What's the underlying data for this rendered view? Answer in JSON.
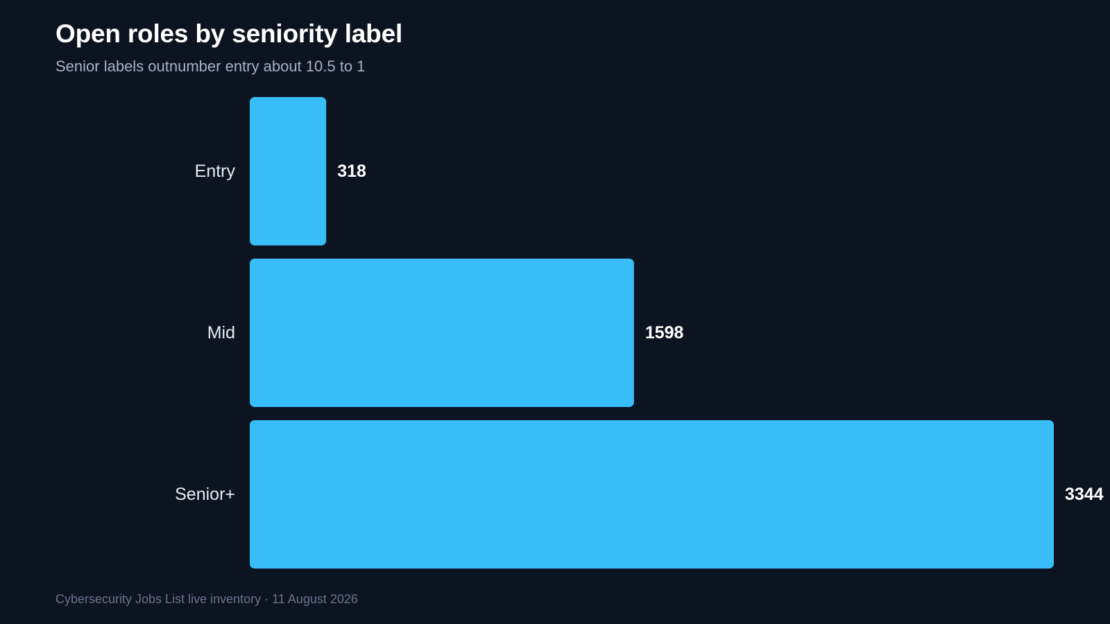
{
  "chart_data": {
    "type": "bar",
    "orientation": "horizontal",
    "title": "Open roles by seniority label",
    "subtitle": "Senior labels outnumber entry about 10.5 to 1",
    "categories": [
      "Entry",
      "Mid",
      "Senior+"
    ],
    "values": [
      318,
      1598,
      3344
    ],
    "xlim": [
      0,
      3344
    ],
    "grid": false,
    "legend": "none",
    "bar_color": "#38bdf8",
    "background_color": "#0c1421",
    "source": "Cybersecurity Jobs List live inventory · 11 August 2026"
  }
}
